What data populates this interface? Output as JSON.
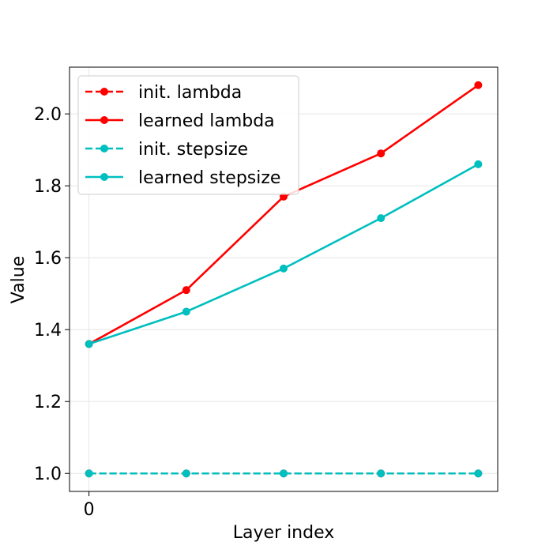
{
  "chart_data": {
    "type": "line",
    "title": "",
    "xlabel": "Layer index",
    "ylabel": "Value",
    "x": [
      0,
      1,
      2,
      3,
      4
    ],
    "x_tick_values": [
      0
    ],
    "x_tick_labels": [
      "0"
    ],
    "xlim": [
      -0.2,
      4.2
    ],
    "ylim": [
      0.95,
      2.13
    ],
    "y_tick_values": [
      1.0,
      1.2,
      1.4,
      1.6,
      1.8,
      2.0
    ],
    "y_tick_labels": [
      "1.0",
      "1.2",
      "1.4",
      "1.6",
      "1.8",
      "2.0"
    ],
    "grid": true,
    "legend_position": "top-left",
    "series": [
      {
        "name": "init. lambda",
        "color": "#ff0000",
        "dashed": true,
        "values": [
          1.0,
          1.0,
          1.0,
          1.0,
          1.0
        ]
      },
      {
        "name": "learned lambda",
        "color": "#ff0000",
        "dashed": false,
        "values": [
          1.36,
          1.51,
          1.77,
          1.89,
          2.08
        ]
      },
      {
        "name": "init. stepsize",
        "color": "#00bfbf",
        "dashed": true,
        "values": [
          1.0,
          1.0,
          1.0,
          1.0,
          1.0
        ]
      },
      {
        "name": "learned stepsize",
        "color": "#00bfbf",
        "dashed": false,
        "values": [
          1.36,
          1.45,
          1.57,
          1.71,
          1.86
        ]
      }
    ]
  }
}
